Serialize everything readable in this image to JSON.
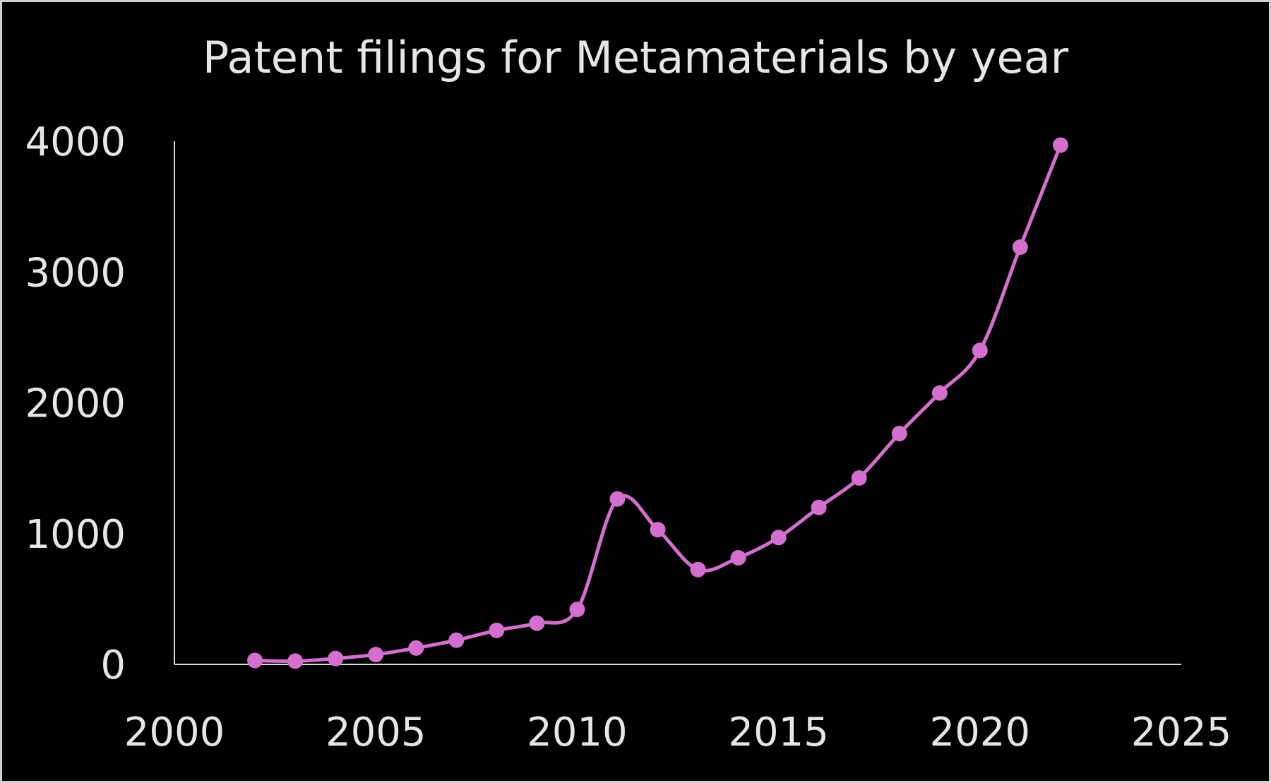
{
  "chart_data": {
    "type": "line",
    "title": "Patent filings for Metamaterials by year",
    "xlabel": "",
    "ylabel": "",
    "xlim": [
      2000,
      2025
    ],
    "ylim": [
      0,
      4000
    ],
    "xticks": [
      2000,
      2005,
      2010,
      2015,
      2020,
      2025
    ],
    "yticks": [
      0,
      1000,
      2000,
      3000,
      4000
    ],
    "grid": false,
    "smooth": true,
    "markers": true,
    "color": "#d46fd0",
    "background": "#000000",
    "x": [
      2002,
      2003,
      2004,
      2005,
      2006,
      2007,
      2008,
      2009,
      2010,
      2011,
      2012,
      2013,
      2014,
      2015,
      2016,
      2017,
      2018,
      2019,
      2020,
      2021,
      2022
    ],
    "y": [
      30,
      25,
      45,
      75,
      125,
      185,
      260,
      315,
      420,
      1265,
      1030,
      725,
      815,
      970,
      1200,
      1425,
      1765,
      2075,
      2400,
      3190,
      3970
    ]
  }
}
